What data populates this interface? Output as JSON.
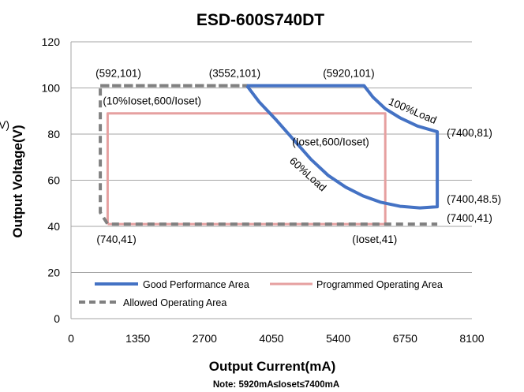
{
  "chart_data": {
    "type": "line",
    "title": "ESD-600S740DT",
    "xlabel": "Output Current(mA)",
    "ylabel": "Output Voltage(V)",
    "ylabel_cut": "(V)",
    "xlim": [
      0,
      8100
    ],
    "ylim": [
      0,
      120
    ],
    "x_ticks": [
      "0",
      "1350",
      "2700",
      "4050",
      "5400",
      "6750",
      "8100"
    ],
    "y_ticks": [
      "0",
      "20",
      "40",
      "60",
      "80",
      "100",
      "120"
    ],
    "grid": "horizontal",
    "legend_placement": "bottom-left",
    "note": "Note:  5920mA≤Ioset≤7400mA",
    "series": [
      {
        "name": "Good Performance Area",
        "color": "#4472c4",
        "style": "solid",
        "points": [
          [
            3552,
            101
          ],
          [
            5920,
            101
          ],
          [
            6100,
            96
          ],
          [
            6350,
            91
          ],
          [
            6650,
            87
          ],
          [
            7000,
            83.5
          ],
          [
            7400,
            81
          ],
          [
            7400,
            48.5
          ],
          [
            7050,
            48
          ],
          [
            6650,
            48.7
          ],
          [
            6250,
            50.5
          ],
          [
            5900,
            53.2
          ],
          [
            5550,
            57
          ],
          [
            5200,
            62
          ],
          [
            4850,
            69
          ],
          [
            4500,
            77.5
          ],
          [
            4150,
            86
          ],
          [
            3800,
            94
          ],
          [
            3552,
            101
          ]
        ]
      },
      {
        "name": "Programmed Operating Area",
        "color": "#e6a0a0",
        "style": "solid",
        "points": [
          [
            740,
            41
          ],
          [
            6350,
            41
          ],
          [
            6350,
            89
          ],
          [
            740,
            89
          ],
          [
            740,
            41
          ]
        ]
      },
      {
        "name": "Allowed Operating Area",
        "color": "#808080",
        "style": "dashed",
        "points": [
          [
            592,
            101
          ],
          [
            3552,
            101
          ],
          [
            3552,
            101
          ],
          [
            592,
            101
          ],
          [
            592,
            46
          ],
          [
            740,
            41
          ],
          [
            7400,
            41
          ]
        ]
      }
    ],
    "annotations": [
      {
        "text": "(592,101)",
        "x": 592,
        "y": 101
      },
      {
        "text": "(3552,101)",
        "x": 3552,
        "y": 101
      },
      {
        "text": "(5920,101)",
        "x": 5920,
        "y": 101
      },
      {
        "text": "100%Load",
        "x": 6400,
        "y": 93
      },
      {
        "text": "(10%Ioset,600/Ioset)",
        "x": 740,
        "y": 89
      },
      {
        "text": "(Ioset,600/Ioset)",
        "x": 6350,
        "y": 89
      },
      {
        "text": "(7400,81)",
        "x": 7400,
        "y": 81
      },
      {
        "text": "60%Load",
        "x": 4400,
        "y": 68
      },
      {
        "text": "(7400,48.5)",
        "x": 7400,
        "y": 48.5
      },
      {
        "text": "(7400,41)",
        "x": 7400,
        "y": 41
      },
      {
        "text": "(740,41)",
        "x": 740,
        "y": 41
      },
      {
        "text": "(Ioset,41)",
        "x": 6350,
        "y": 41
      }
    ]
  }
}
